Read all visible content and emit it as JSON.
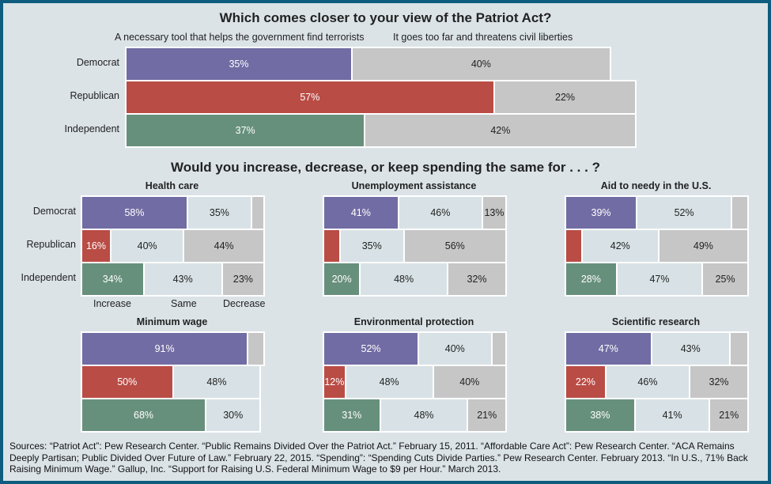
{
  "colors": {
    "Democrat": "#716ca3",
    "Republican": "#b94c45",
    "Independent": "#67907c",
    "gray": "#c6c6c6",
    "light": "#d8e2e6"
  },
  "chart_data": [
    {
      "type": "bar",
      "stacked": true,
      "orientation": "horizontal",
      "title": "Which comes closer to your view of the Patriot Act?",
      "categories": [
        "Democrat",
        "Republican",
        "Independent"
      ],
      "series": [
        {
          "name": "A necessary tool that helps the government find terrorists",
          "values": [
            35,
            57,
            37
          ]
        },
        {
          "name": "It goes too far and threatens civil liberties",
          "values": [
            40,
            22,
            42
          ]
        }
      ]
    },
    {
      "type": "bar",
      "stacked": true,
      "orientation": "horizontal",
      "title": "Would you increase, decrease, or keep spending the same for . . . ?",
      "categories": [
        "Democrat",
        "Republican",
        "Independent"
      ],
      "legend": [
        "Increase",
        "Same",
        "Decrease"
      ],
      "panels": [
        {
          "title": "Health care",
          "values": [
            [
              58,
              35,
              7
            ],
            [
              16,
              40,
              44
            ],
            [
              34,
              43,
              23
            ]
          ],
          "labeled": [
            [
              true,
              true,
              false
            ],
            [
              true,
              true,
              true
            ],
            [
              true,
              true,
              true
            ]
          ]
        },
        {
          "title": "Unemployment assistance",
          "values": [
            [
              41,
              46,
              13
            ],
            [
              9,
              35,
              56
            ],
            [
              20,
              48,
              32
            ]
          ],
          "labeled": [
            [
              true,
              true,
              true
            ],
            [
              false,
              true,
              true
            ],
            [
              true,
              true,
              true
            ]
          ]
        },
        {
          "title": "Aid to needy in the U.S.",
          "values": [
            [
              39,
              52,
              9
            ],
            [
              9,
              42,
              49
            ],
            [
              28,
              47,
              25
            ]
          ],
          "labeled": [
            [
              true,
              true,
              false
            ],
            [
              false,
              true,
              true
            ],
            [
              true,
              true,
              true
            ]
          ]
        },
        {
          "title": "Minimum wage",
          "values": [
            [
              91,
              0,
              9
            ],
            [
              50,
              48,
              0
            ],
            [
              68,
              30,
              0
            ]
          ],
          "labeled": [
            [
              true,
              false,
              false
            ],
            [
              true,
              true,
              false
            ],
            [
              true,
              true,
              false
            ]
          ]
        },
        {
          "title": "Environmental protection",
          "values": [
            [
              52,
              40,
              8
            ],
            [
              12,
              48,
              40
            ],
            [
              31,
              48,
              21
            ]
          ],
          "labeled": [
            [
              true,
              true,
              false
            ],
            [
              true,
              true,
              true
            ],
            [
              true,
              true,
              true
            ]
          ]
        },
        {
          "title": "Scientific research",
          "values": [
            [
              47,
              43,
              10
            ],
            [
              22,
              46,
              32
            ],
            [
              38,
              41,
              21
            ]
          ],
          "labeled": [
            [
              true,
              true,
              false
            ],
            [
              true,
              true,
              true
            ],
            [
              true,
              true,
              true
            ]
          ]
        }
      ]
    }
  ],
  "sources": "Sources: “Patriot Act”: Pew Research Center. “Public Remains Divided Over the Patriot Act.” February 15, 2011. “Affordable Care Act”: Pew Research Center. “ACA Remains Deeply Partisan; Public Divided Over Future of Law.” February 22, 2015. “Spending”: “Spending Cuts Divide Parties.” Pew Research Center. February 2013. “In U.S., 71% Back Raising Minimum Wage.” Gallup, Inc. “Support for Raising U.S. Federal Minimum Wage to $9 per Hour.” March 2013."
}
